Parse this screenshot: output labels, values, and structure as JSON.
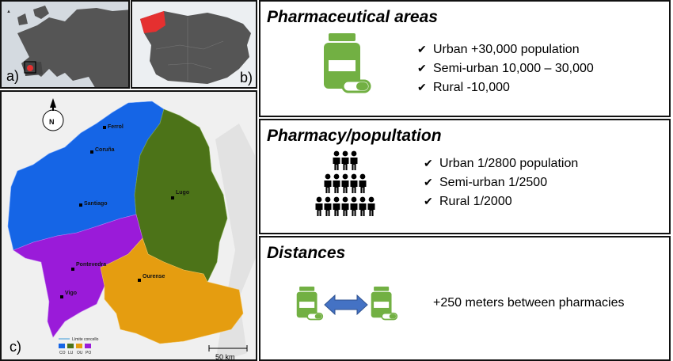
{
  "panel_letters": {
    "a": "a)",
    "b": "b)",
    "c": "c)"
  },
  "map": {
    "north_label": "N",
    "cities": [
      "Ferrol",
      "Coruña",
      "Santiago",
      "Lugo",
      "Pontevedra",
      "Vigo",
      "Ourense"
    ],
    "legend_title": "Límite concello",
    "legend_items": [
      "CO",
      "LU",
      "OU",
      "PO"
    ],
    "scale_label": "50 km",
    "colors": {
      "CO": "#1565e6",
      "LU": "#4c7318",
      "OU": "#e59d10",
      "PO": "#9a1bd9"
    }
  },
  "areas": {
    "title": "Pharmaceutical areas",
    "items": [
      "Urban +30,000 population",
      "Semi-urban 10,000 – 30,000",
      "Rural -10,000"
    ]
  },
  "pharmacy_population": {
    "title": "Pharmacy/popultation",
    "items": [
      "Urban 1/2800 population",
      "Semi-urban 1/2500",
      "Rural 1/2000"
    ]
  },
  "distances": {
    "title": "Distances",
    "text": "+250 meters between pharmacies"
  },
  "icon_colors": {
    "pharmacy": "#72b043",
    "arrow": "#4472c4",
    "people": "#000000"
  }
}
